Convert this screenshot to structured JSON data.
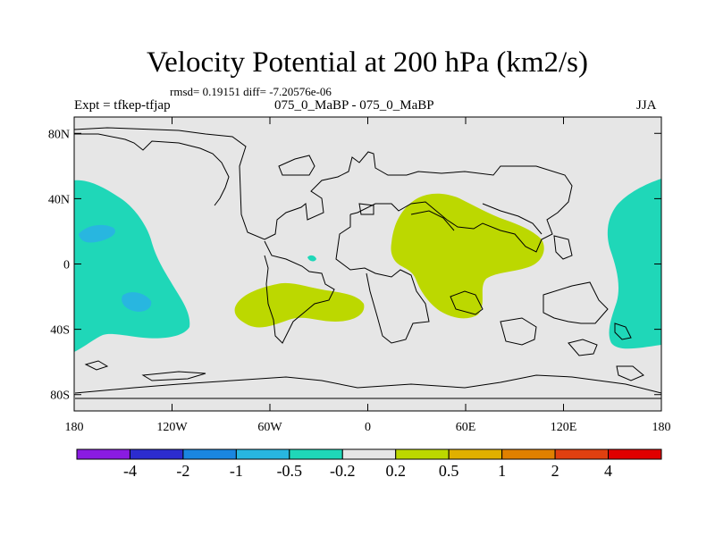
{
  "header": {
    "title": "Velocity Potential at 200 hPa (km2/s)",
    "stats": "rmsd= 0.19151 diff= -7.20576e-06",
    "expt": "Expt = tfkep-tfjap",
    "cases": "075_0_MaBP - 075_0_MaBP",
    "season": "JJA"
  },
  "map": {
    "lon_range": [
      -180,
      180
    ],
    "lat_range": [
      -90,
      90
    ],
    "background_color": "#e6e6e6",
    "y_ticks": [
      {
        "label": "80N",
        "lat": 80
      },
      {
        "label": "40N",
        "lat": 40
      },
      {
        "label": "0",
        "lat": 0
      },
      {
        "label": "40S",
        "lat": -40
      },
      {
        "label": "80S",
        "lat": -80
      }
    ],
    "x_ticks": [
      {
        "label": "180",
        "lon": -180
      },
      {
        "label": "120W",
        "lon": -120
      },
      {
        "label": "60W",
        "lon": -60
      },
      {
        "label": "0",
        "lon": 0
      },
      {
        "label": "60E",
        "lon": 60
      },
      {
        "label": "120E",
        "lon": 120
      },
      {
        "label": "180",
        "lon": 180
      }
    ],
    "regions": [
      {
        "name": "west-pacific-negative",
        "level": "-0.5 to -0.2",
        "color": "#1fd7b8"
      },
      {
        "name": "west-pacific-inner-1",
        "level": "-1 to -0.5",
        "color": "#28b6e0"
      },
      {
        "name": "west-pacific-inner-2",
        "level": "-1 to -0.5",
        "color": "#28b6e0"
      },
      {
        "name": "east-pacific-negative",
        "level": "-0.5 to -0.2",
        "color": "#1fd7b8"
      },
      {
        "name": "south-atlantic-positive",
        "level": "0.2 to 0.5",
        "color": "#bcd800"
      },
      {
        "name": "indian-ocean-positive",
        "level": "0.2 to 0.5",
        "color": "#bcd800"
      },
      {
        "name": "atlantic-small-negative",
        "level": "-0.5 to -0.2",
        "color": "#1fd7b8"
      }
    ]
  },
  "colorbar": {
    "colors": [
      "#8a1be2",
      "#2c2ccf",
      "#1a86e0",
      "#28b6e0",
      "#1fd7b8",
      "#e6e6e6",
      "#bcd800",
      "#e0b000",
      "#e08000",
      "#e04010",
      "#e00000"
    ],
    "labels": [
      "-4",
      "-2",
      "-1",
      "-0.5",
      "-0.2",
      "0.2",
      "0.5",
      "1",
      "2",
      "4"
    ]
  }
}
